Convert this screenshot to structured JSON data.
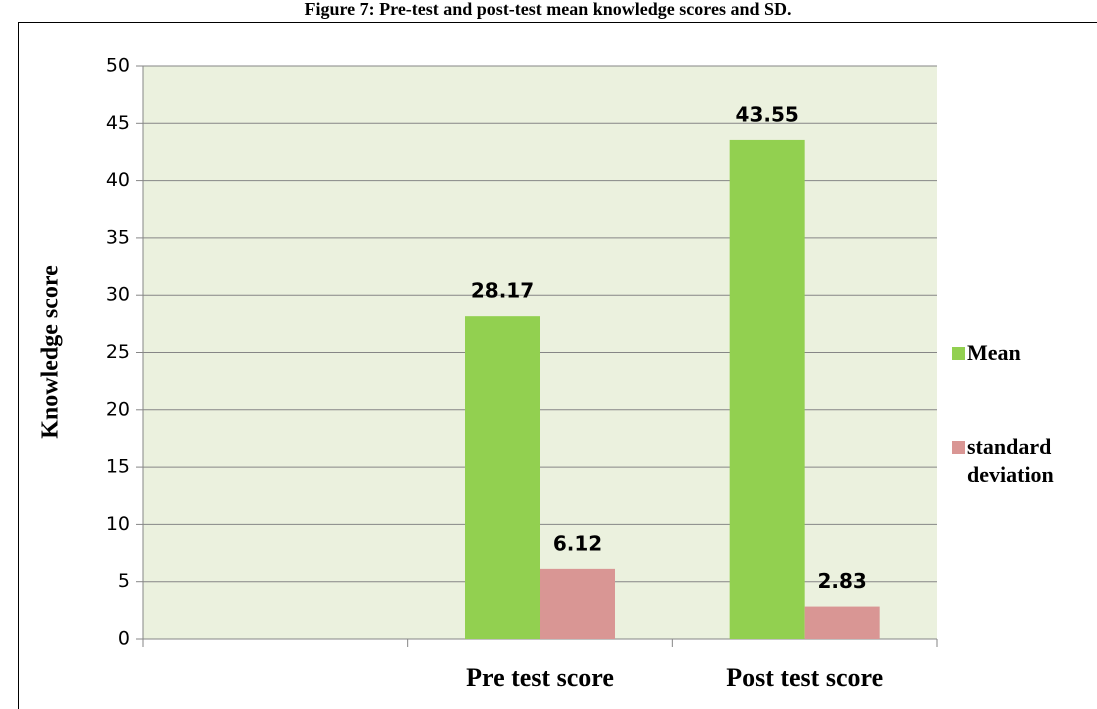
{
  "chart_data": {
    "type": "bar",
    "title": "Figure 7: Pre-test and post-test mean knowledge scores and SD.",
    "y_label": "Knowledge score",
    "categories": [
      null,
      "Pre test score",
      "Post test score"
    ],
    "series": [
      {
        "name": "Mean",
        "color": "#92d050",
        "values": [
          null,
          28.17,
          43.55
        ]
      },
      {
        "name": "standard deviation",
        "color": "#d99694",
        "values": [
          null,
          6.12,
          2.83
        ]
      }
    ],
    "ylim": [
      0,
      50
    ],
    "yticks": [
      0,
      5,
      10,
      15,
      20,
      25,
      30,
      35,
      40,
      45,
      50
    ],
    "grid": true,
    "legend": "right",
    "plot_background": "#ebf1de"
  }
}
